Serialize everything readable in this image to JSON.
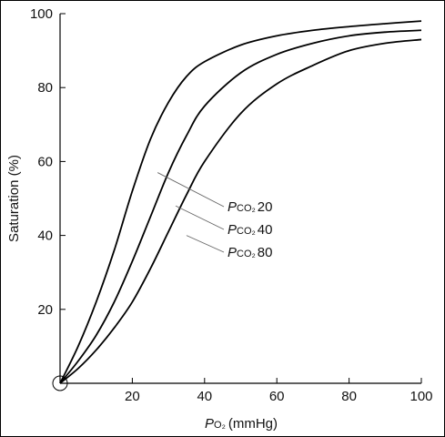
{
  "chart_data": {
    "type": "line",
    "xlabel": {
      "italic": "P",
      "sub": "O₂",
      "units": "(mmHg)"
    },
    "ylabel": "Saturation (%)",
    "xlim": [
      0,
      100
    ],
    "ylim": [
      0,
      100
    ],
    "xticks": [
      20,
      40,
      60,
      80,
      100
    ],
    "yticks": [
      20,
      40,
      60,
      80,
      100
    ],
    "grid": false,
    "origin_marker": true,
    "series": [
      {
        "name": "20",
        "label_prefix": "P",
        "label_sub": "CO₂",
        "x": [
          0,
          5,
          10,
          15,
          20,
          25,
          30,
          35,
          40,
          50,
          60,
          70,
          80,
          90,
          100
        ],
        "y": [
          0,
          10,
          22,
          36,
          52,
          66,
          76,
          83,
          87,
          91.5,
          94,
          95.5,
          96.5,
          97.3,
          98
        ]
      },
      {
        "name": "40",
        "label_prefix": "P",
        "label_sub": "CO₂",
        "x": [
          0,
          5,
          10,
          15,
          20,
          25,
          30,
          35,
          40,
          50,
          60,
          70,
          80,
          90,
          100
        ],
        "y": [
          0,
          6,
          13,
          22,
          33,
          45,
          57,
          67,
          75,
          84,
          89,
          92,
          94,
          95,
          95.5
        ]
      },
      {
        "name": "80",
        "label_prefix": "P",
        "label_sub": "CO₂",
        "x": [
          0,
          5,
          10,
          15,
          20,
          25,
          30,
          35,
          40,
          50,
          60,
          70,
          80,
          90,
          100
        ],
        "y": [
          0,
          4,
          9,
          15,
          22,
          31,
          41,
          51,
          60,
          73,
          81,
          86,
          90,
          92,
          93
        ]
      }
    ],
    "label_leaders": [
      {
        "series": "20",
        "from": [
          27,
          57
        ]
      },
      {
        "series": "40",
        "from": [
          32,
          48
        ]
      },
      {
        "series": "80",
        "from": [
          35,
          40
        ]
      }
    ],
    "colors": {
      "line": "#000000",
      "leader": "#666666",
      "text": "#111111"
    }
  }
}
